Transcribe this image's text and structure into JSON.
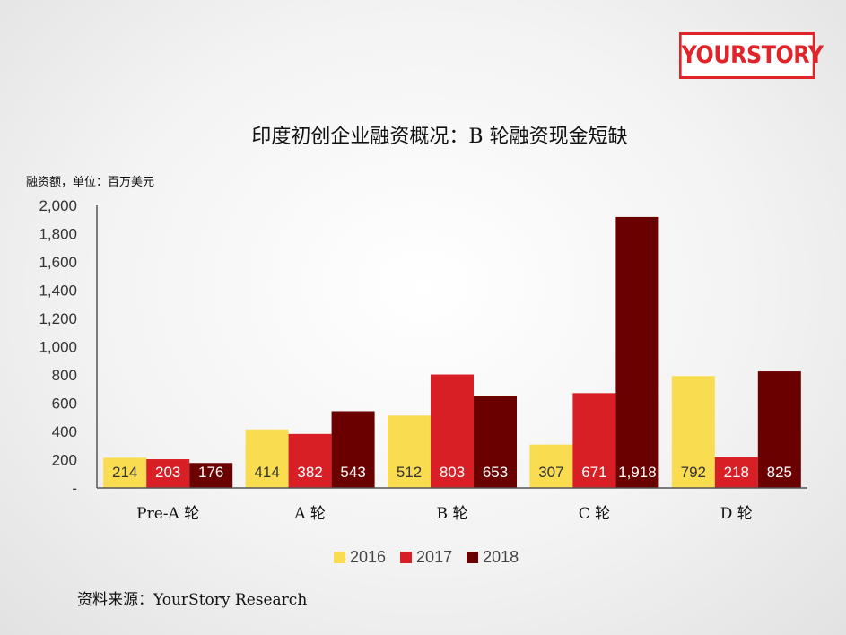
{
  "logo": {
    "text": "YOURSTORY"
  },
  "source": "资料来源：YourStory Research",
  "chart_data": {
    "type": "bar",
    "title": "印度初创企业融资概况：B 轮融资现金短缺",
    "ylabel": "融资额，单位：百万美元",
    "xlabel": "",
    "categories": [
      "Pre-A 轮",
      "A 轮",
      "B 轮",
      "C 轮",
      "D 轮"
    ],
    "ylim": [
      0,
      2000
    ],
    "yticks": [
      0,
      200,
      400,
      600,
      800,
      1000,
      1200,
      1400,
      1600,
      1800,
      2000
    ],
    "ytick_labels": [
      "-",
      "200",
      "400",
      "600",
      "800",
      "1,000",
      "1,200",
      "1,400",
      "1,600",
      "1,800",
      "2,000"
    ],
    "grid": false,
    "legend_position": "bottom",
    "series": [
      {
        "name": "2016",
        "color": "#f9dc50",
        "label_color": "#333333",
        "values": [
          214,
          414,
          512,
          307,
          792
        ],
        "labels": [
          "214",
          "414",
          "512",
          "307",
          "792"
        ]
      },
      {
        "name": "2017",
        "color": "#d81f26",
        "label_color": "#ffffff",
        "values": [
          203,
          382,
          803,
          671,
          218
        ],
        "labels": [
          "203",
          "382",
          "803",
          "671",
          "218"
        ]
      },
      {
        "name": "2018",
        "color": "#6b0000",
        "label_color": "#ffffff",
        "values": [
          176,
          543,
          653,
          1918,
          825
        ],
        "labels": [
          "176",
          "543",
          "653",
          "1,918",
          "825"
        ]
      }
    ]
  }
}
